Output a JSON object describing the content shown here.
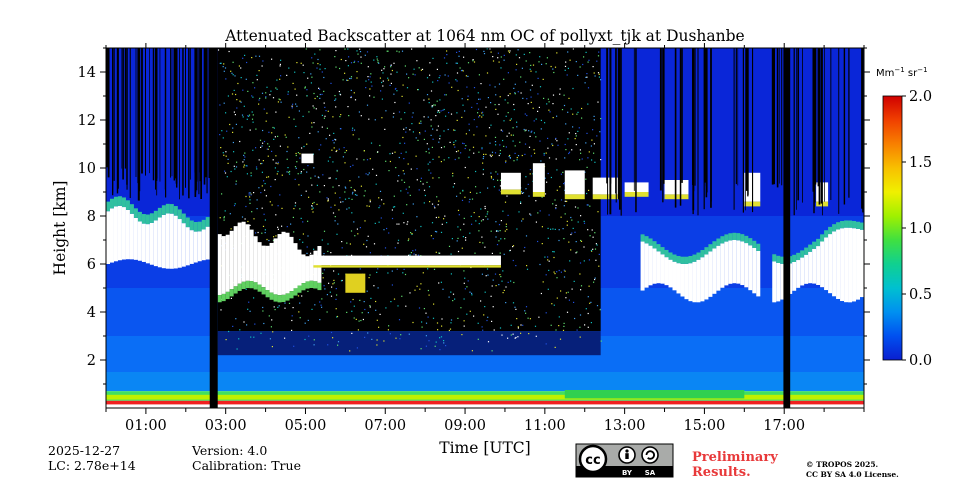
{
  "chart_data": {
    "type": "heatmap",
    "title": "Attenuated Backscatter at 1064 nm OC of pollyxt_tjk at Dushanbe",
    "xlabel": "Time [UTC]",
    "ylabel": "Height [km]",
    "xlim_hours_utc": [
      0.0,
      19.0
    ],
    "ylim_km": [
      0.0,
      15.0
    ],
    "x_ticks": [
      {
        "hour": 1,
        "label": "01:00"
      },
      {
        "hour": 3,
        "label": "03:00"
      },
      {
        "hour": 5,
        "label": "05:00"
      },
      {
        "hour": 7,
        "label": "07:00"
      },
      {
        "hour": 9,
        "label": "09:00"
      },
      {
        "hour": 11,
        "label": "11:00"
      },
      {
        "hour": 13,
        "label": "13:00"
      },
      {
        "hour": 15,
        "label": "15:00"
      },
      {
        "hour": 17,
        "label": "17:00"
      }
    ],
    "y_ticks": [
      {
        "value": 2,
        "label": "2"
      },
      {
        "value": 4,
        "label": "4"
      },
      {
        "value": 6,
        "label": "6"
      },
      {
        "value": 8,
        "label": "8"
      },
      {
        "value": 10,
        "label": "10"
      },
      {
        "value": 12,
        "label": "12"
      },
      {
        "value": 14,
        "label": "14"
      }
    ],
    "colorbar": {
      "unit_label": "Mm",
      "unit_exp1": "−1",
      "unit_mid": " sr",
      "unit_exp2": "−1",
      "range": [
        0.0,
        2.0
      ],
      "ticks": [
        {
          "value": 0.0,
          "label": "0.0"
        },
        {
          "value": 0.5,
          "label": "0.5"
        },
        {
          "value": 1.0,
          "label": "1.0"
        },
        {
          "value": 1.5,
          "label": "1.5"
        },
        {
          "value": 2.0,
          "label": "2.0"
        }
      ],
      "colors": [
        "#0a1fd0",
        "#0050f0",
        "#0090f0",
        "#00c0d0",
        "#10d090",
        "#40e040",
        "#a0f000",
        "#f0f000",
        "#f8c000",
        "#f88000",
        "#f04000",
        "#d00000"
      ]
    },
    "features": {
      "gap_hours": [
        [
          2.6,
          2.8
        ],
        [
          16.98,
          17.15
        ]
      ],
      "night_noise_hours": [
        2.8,
        12.4
      ],
      "cloud_layers_km": [
        {
          "label": "aerosol layer top (white)",
          "start_hour": 0.0,
          "end_hour": 19.0,
          "base_km": 4.5,
          "top_km": 8.8
        },
        {
          "label": "thin cloud",
          "start_hour": 5.2,
          "end_hour": 9.9,
          "base_km": 5.9,
          "top_km": 6.4
        },
        {
          "label": "mid-level cloud",
          "start_hour": 10.5,
          "end_hour": 15.0,
          "base_km": 8.6,
          "top_km": 10.2
        },
        {
          "label": "small cloud patch",
          "start_hour": 4.9,
          "end_hour": 5.2,
          "base_km": 10.1,
          "top_km": 10.7
        }
      ],
      "surface_layer_km": [
        0.0,
        0.7
      ]
    }
  },
  "meta": {
    "date": "2025-12-27",
    "lc": "LC: 2.78e+14",
    "version": "Version: 4.0",
    "calibration": "Calibration: True",
    "prelim_line1": "Preliminary",
    "prelim_line2": "Results.",
    "copyright_line1": "© TROPOS 2025.",
    "copyright_line2": "CC BY SA 4.0 License.",
    "cc_logo_text": "cc",
    "cc_by": "BY",
    "cc_sa": "SA"
  }
}
